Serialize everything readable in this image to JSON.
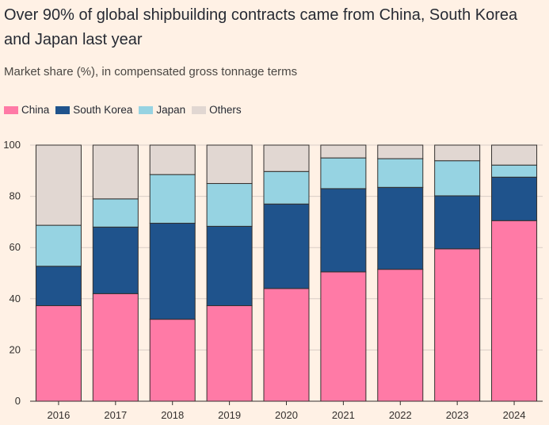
{
  "title": "Over 90% of global shipbuilding contracts came from China, South Korea and Japan last year",
  "subtitle": "Market share (%), in compensated gross tonnage terms",
  "chart_data": {
    "type": "bar",
    "stacked": true,
    "categories": [
      "2016",
      "2017",
      "2018",
      "2019",
      "2020",
      "2021",
      "2022",
      "2023",
      "2024"
    ],
    "series": [
      {
        "name": "China",
        "color": "#ff7aa6",
        "values": [
          37.3,
          42.0,
          32.0,
          37.3,
          44.0,
          50.5,
          51.5,
          59.5,
          70.5
        ]
      },
      {
        "name": "South Korea",
        "color": "#1f538c",
        "values": [
          15.4,
          26.0,
          37.5,
          31.0,
          33.0,
          32.5,
          32.0,
          20.7,
          17.0
        ]
      },
      {
        "name": "Japan",
        "color": "#96d3e2",
        "values": [
          16.0,
          11.0,
          19.0,
          16.7,
          12.7,
          12.0,
          11.2,
          13.7,
          4.7
        ]
      },
      {
        "name": "Others",
        "color": "#e1d7d2",
        "values": [
          31.3,
          21.0,
          11.5,
          15.0,
          10.3,
          5.0,
          5.3,
          6.1,
          7.8
        ]
      }
    ],
    "ylim": [
      0,
      100
    ],
    "yticks": [
      0,
      20,
      40,
      60,
      80,
      100
    ],
    "xlabel": "",
    "ylabel": "",
    "legend_position": "top-left",
    "grid": true
  }
}
